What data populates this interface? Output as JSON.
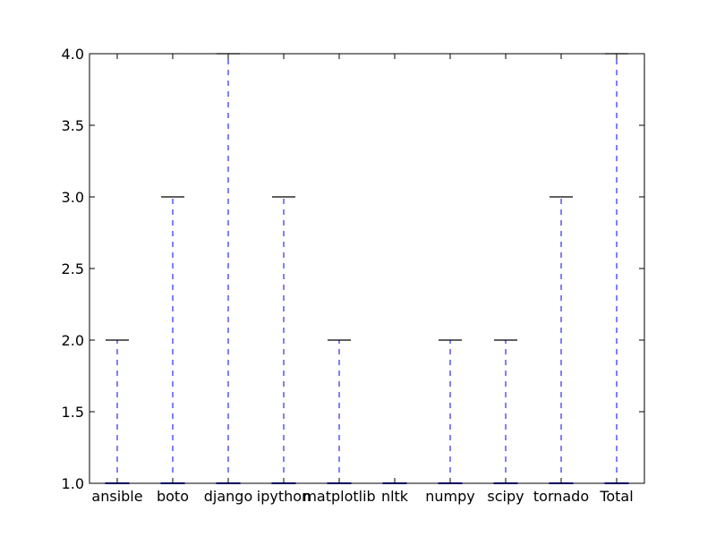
{
  "chart_data": {
    "type": "box",
    "title": "",
    "xlabel": "",
    "ylabel": "",
    "ylim": [
      1.0,
      4.0
    ],
    "yticks": [
      1.0,
      1.5,
      2.0,
      2.5,
      3.0,
      3.5,
      4.0
    ],
    "ytick_labels": [
      "1.0",
      "1.5",
      "2.0",
      "2.5",
      "3.0",
      "3.5",
      "4.0"
    ],
    "categories": [
      "ansible",
      "boto",
      "django",
      "ipython",
      "matplotlib",
      "nltk",
      "numpy",
      "scipy",
      "tornado",
      "Total"
    ],
    "boxes": [
      {
        "label": "ansible",
        "whisker_low": 1.0,
        "q1": 1.0,
        "median": 1.0,
        "q3": 1.0,
        "whisker_high": 2.0
      },
      {
        "label": "boto",
        "whisker_low": 1.0,
        "q1": 1.0,
        "median": 1.0,
        "q3": 1.0,
        "whisker_high": 3.0
      },
      {
        "label": "django",
        "whisker_low": 1.0,
        "q1": 1.0,
        "median": 1.0,
        "q3": 1.0,
        "whisker_high": 4.0
      },
      {
        "label": "ipython",
        "whisker_low": 1.0,
        "q1": 1.0,
        "median": 1.0,
        "q3": 1.0,
        "whisker_high": 3.0
      },
      {
        "label": "matplotlib",
        "whisker_low": 1.0,
        "q1": 1.0,
        "median": 1.0,
        "q3": 1.0,
        "whisker_high": 2.0
      },
      {
        "label": "nltk",
        "whisker_low": 1.0,
        "q1": 1.0,
        "median": 1.0,
        "q3": 1.0,
        "whisker_high": 1.0
      },
      {
        "label": "numpy",
        "whisker_low": 1.0,
        "q1": 1.0,
        "median": 1.0,
        "q3": 1.0,
        "whisker_high": 2.0
      },
      {
        "label": "scipy",
        "whisker_low": 1.0,
        "q1": 1.0,
        "median": 1.0,
        "q3": 1.0,
        "whisker_high": 2.0
      },
      {
        "label": "tornado",
        "whisker_low": 1.0,
        "q1": 1.0,
        "median": 1.0,
        "q3": 1.0,
        "whisker_high": 3.0
      },
      {
        "label": "Total",
        "whisker_low": 1.0,
        "q1": 1.0,
        "median": 1.0,
        "q3": 1.0,
        "whisker_high": 4.0
      }
    ],
    "colors": {
      "box": "#0000ff",
      "whisker": "#0000ff",
      "cap": "#000000",
      "median": "#ff0000",
      "axes": "#000000"
    },
    "grid": false,
    "legend": "none"
  }
}
